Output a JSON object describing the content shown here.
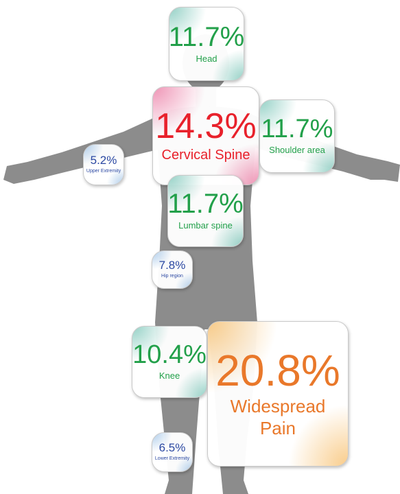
{
  "regions": [
    {
      "value": "11.7%",
      "label": "Head"
    },
    {
      "value": "14.3%",
      "label": "Cervical Spine"
    },
    {
      "value": "11.7%",
      "label": "Shoulder area"
    },
    {
      "value": "5.2%",
      "label": "Upper Extremity"
    },
    {
      "value": "11.7%",
      "label": "Lumbar spine"
    },
    {
      "value": "7.8%",
      "label": "Hip region"
    },
    {
      "value": "10.4%",
      "label": "Knee"
    },
    {
      "value": "20.8%",
      "label": "Widespread Pain"
    },
    {
      "value": "6.5%",
      "label": "Lower Extremity"
    }
  ]
}
